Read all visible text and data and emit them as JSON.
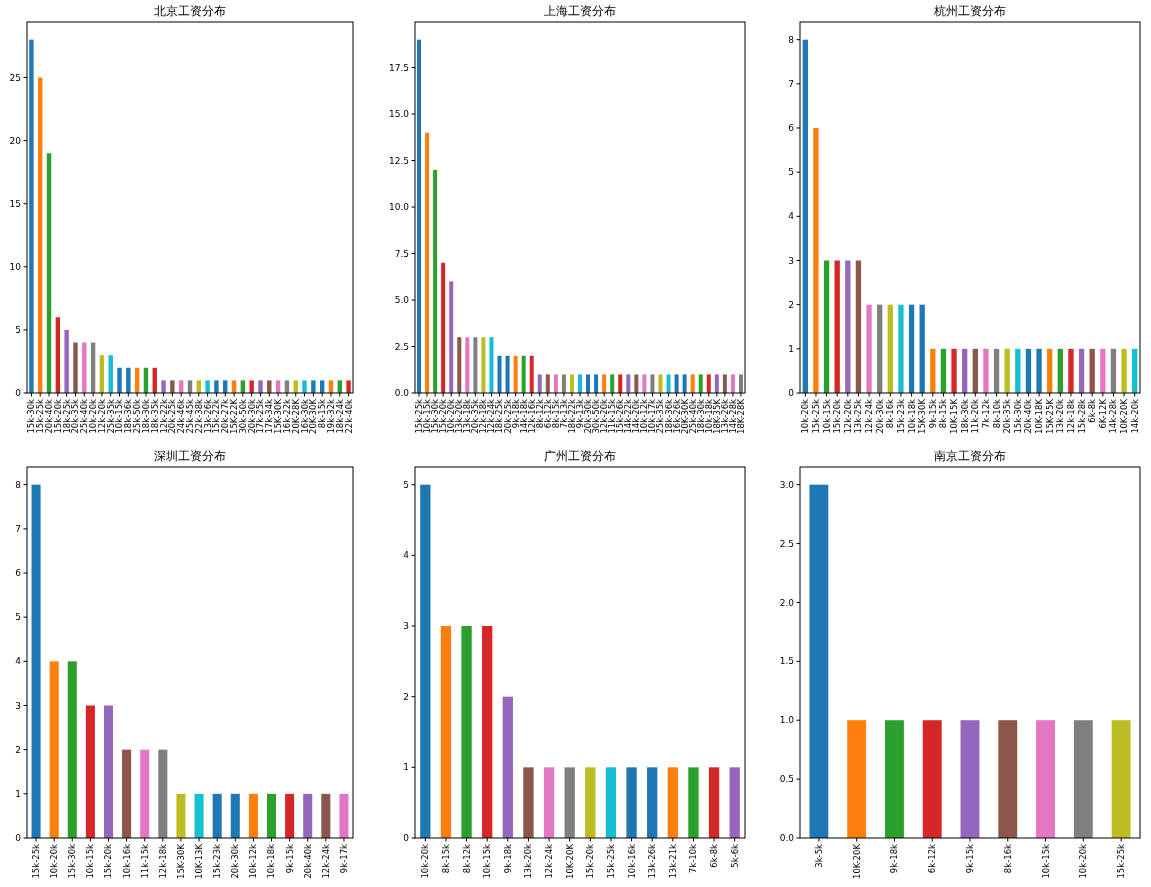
{
  "chart_data": [
    {
      "type": "bar",
      "title": "北京工资分布",
      "categories": [
        "15k-30k",
        "15k-25k",
        "20k-40k",
        "15k-20k",
        "18k-25k",
        "20k-35k",
        "25k-40k",
        "10k-20k",
        "12k-20k",
        "25k-35k",
        "10k-15k",
        "18k-36k",
        "25k-50k",
        "18k-30k",
        "18k-35k",
        "12k-22k",
        "20k-25k",
        "24k-46k",
        "25k-45k",
        "22k-38k",
        "13k-26k",
        "15k-22k",
        "20k-27k",
        "15K-22K",
        "30k-50k",
        "20k-30k",
        "17k-25k",
        "17k-34k",
        "15K-30K",
        "16k-22k",
        "20K-28K",
        "16k-30k",
        "20K-30K",
        "8k-15k",
        "19k-32k",
        "18k-24k",
        "22k-40k"
      ],
      "values": [
        28,
        25,
        19,
        6,
        5,
        4,
        4,
        4,
        3,
        3,
        2,
        2,
        2,
        2,
        2,
        1,
        1,
        1,
        1,
        1,
        1,
        1,
        1,
        1,
        1,
        1,
        1,
        1,
        1,
        1,
        1,
        1,
        1,
        1,
        1,
        1,
        1
      ],
      "colors": [
        "#1f77b4",
        "#ff7f0e",
        "#2ca02c",
        "#d62728",
        "#9467bd",
        "#8c564b",
        "#e377c2",
        "#7f7f7f",
        "#bcbd22",
        "#17becf",
        "#1f77b4",
        "#1f77b4",
        "#ff7f0e",
        "#2ca02c",
        "#d62728",
        "#9467bd",
        "#8c564b",
        "#e377c2",
        "#7f7f7f",
        "#bcbd22",
        "#17becf",
        "#1f77b4",
        "#1f77b4",
        "#ff7f0e",
        "#2ca02c",
        "#d62728",
        "#9467bd",
        "#8c564b",
        "#e377c2",
        "#7f7f7f",
        "#bcbd22",
        "#17becf",
        "#1f77b4",
        "#1f77b4",
        "#ff7f0e",
        "#2ca02c",
        "#d62728"
      ],
      "ylim": [
        0,
        29.4
      ],
      "yticks": [
        0,
        5,
        10,
        15,
        20,
        25
      ]
    },
    {
      "type": "bar",
      "title": "上海工资分布",
      "categories": [
        "15k-25k",
        "10k-15k",
        "15k-30k",
        "15k-20k",
        "10k-20k",
        "13k-20k",
        "13k-18k",
        "20k-35k",
        "12k-18k",
        "12k-24k",
        "18k-25k",
        "20k-25k",
        "9k-18k",
        "14k-18k",
        "12k-16k",
        "8k-12k",
        "6k-12k",
        "8k-15k",
        "7k-13k",
        "18k-22k",
        "9k-13k",
        "20k-30k",
        "30k-50k",
        "12k-20k",
        "11k-15k",
        "15k-26k",
        "14k-22k",
        "14k-20k",
        "10k-12k",
        "10k-17k",
        "25k-35k",
        "18k-36k",
        "16k-26k",
        "20K-30K",
        "25k-40k",
        "18k-30k",
        "10k-18k",
        "18K-35K",
        "13k-26k",
        "14k-28k",
        "18K-28K"
      ],
      "values": [
        19,
        14,
        12,
        7,
        6,
        3,
        3,
        3,
        3,
        3,
        2,
        2,
        2,
        2,
        2,
        1,
        1,
        1,
        1,
        1,
        1,
        1,
        1,
        1,
        1,
        1,
        1,
        1,
        1,
        1,
        1,
        1,
        1,
        1,
        1,
        1,
        1,
        1,
        1,
        1,
        1
      ],
      "colors": [
        "#1f77b4",
        "#ff7f0e",
        "#2ca02c",
        "#d62728",
        "#9467bd",
        "#8c564b",
        "#e377c2",
        "#7f7f7f",
        "#bcbd22",
        "#17becf",
        "#1f77b4",
        "#1f77b4",
        "#ff7f0e",
        "#2ca02c",
        "#d62728",
        "#9467bd",
        "#8c564b",
        "#e377c2",
        "#7f7f7f",
        "#bcbd22",
        "#17becf",
        "#1f77b4",
        "#1f77b4",
        "#ff7f0e",
        "#2ca02c",
        "#d62728",
        "#9467bd",
        "#8c564b",
        "#e377c2",
        "#7f7f7f",
        "#bcbd22",
        "#17becf",
        "#1f77b4",
        "#1f77b4",
        "#ff7f0e",
        "#2ca02c",
        "#d62728",
        "#9467bd",
        "#8c564b",
        "#e377c2",
        "#7f7f7f"
      ],
      "ylim": [
        0,
        19.95
      ],
      "yticks": [
        {
          "value": 0,
          "label": "0.0"
        },
        2.5,
        {
          "value": 5,
          "label": "5.0"
        },
        7.5,
        {
          "value": 10,
          "label": "10.0"
        },
        12.5,
        {
          "value": 15,
          "label": "15.0"
        },
        17.5
      ]
    },
    {
      "type": "bar",
      "title": "杭州工资分布",
      "categories": [
        "10k-20k",
        "15k-25k",
        "10k-15k",
        "15k-20k",
        "12k-20k",
        "13k-25k",
        "12k-24k",
        "20k-30k",
        "8k-16k",
        "15k-23k",
        "10k-18k",
        "15K-30K",
        "9k-15k",
        "8k-15k",
        "10K-15K",
        "18k-30k",
        "11k-20k",
        "7k-12k",
        "8k-10k",
        "20k-35k",
        "15k-30k",
        "20k-40k",
        "10K-18K",
        "15K-25K",
        "13k-20k",
        "12k-18k",
        "15k-28k",
        "6k-8k",
        "6K-12K",
        "14k-28k",
        "10K-20K",
        "14k-20k"
      ],
      "values": [
        8,
        6,
        3,
        3,
        3,
        3,
        2,
        2,
        2,
        2,
        2,
        2,
        1,
        1,
        1,
        1,
        1,
        1,
        1,
        1,
        1,
        1,
        1,
        1,
        1,
        1,
        1,
        1,
        1,
        1,
        1,
        1
      ],
      "colors": [
        "#1f77b4",
        "#ff7f0e",
        "#2ca02c",
        "#d62728",
        "#9467bd",
        "#8c564b",
        "#e377c2",
        "#7f7f7f",
        "#bcbd22",
        "#17becf",
        "#1f77b4",
        "#1f77b4",
        "#ff7f0e",
        "#2ca02c",
        "#d62728",
        "#9467bd",
        "#8c564b",
        "#e377c2",
        "#7f7f7f",
        "#bcbd22",
        "#17becf",
        "#1f77b4",
        "#1f77b4",
        "#ff7f0e",
        "#2ca02c",
        "#d62728",
        "#9467bd",
        "#8c564b",
        "#e377c2",
        "#7f7f7f",
        "#bcbd22",
        "#17becf"
      ],
      "ylim": [
        0,
        8.4
      ],
      "yticks": [
        0,
        1,
        2,
        3,
        4,
        5,
        6,
        7,
        8
      ]
    },
    {
      "type": "bar",
      "title": "深圳工资分布",
      "categories": [
        "15k-25k",
        "10k-20k",
        "15k-30k",
        "10k-15k",
        "15k-20k",
        "10k-16k",
        "11k-15k",
        "12k-18k",
        "15K-30K",
        "10K-13K",
        "15k-23k",
        "20k-30k",
        "10k-12k",
        "10k-18k",
        "9k-15k",
        "20k-40k",
        "12k-24k",
        "9k-17k"
      ],
      "values": [
        8,
        4,
        4,
        3,
        3,
        2,
        2,
        2,
        1,
        1,
        1,
        1,
        1,
        1,
        1,
        1,
        1,
        1
      ],
      "colors": [
        "#1f77b4",
        "#ff7f0e",
        "#2ca02c",
        "#d62728",
        "#9467bd",
        "#8c564b",
        "#e377c2",
        "#7f7f7f",
        "#bcbd22",
        "#17becf",
        "#1f77b4",
        "#1f77b4",
        "#ff7f0e",
        "#2ca02c",
        "#d62728",
        "#9467bd",
        "#8c564b",
        "#e377c2"
      ],
      "ylim": [
        0,
        8.4
      ],
      "yticks": [
        0,
        1,
        2,
        3,
        4,
        5,
        6,
        7,
        8
      ]
    },
    {
      "type": "bar",
      "title": "广州工资分布",
      "categories": [
        "10k-20k",
        "8k-15k",
        "8k-12k",
        "10k-15k",
        "9k-18k",
        "13k-20k",
        "12k-24k",
        "10K-20K",
        "15k-20k",
        "15k-25k",
        "10k-16k",
        "13k-26k",
        "13k-21k",
        "7k-10k",
        "6k-8k",
        "5k-6k"
      ],
      "values": [
        5,
        3,
        3,
        3,
        2,
        1,
        1,
        1,
        1,
        1,
        1,
        1,
        1,
        1,
        1,
        1
      ],
      "colors": [
        "#1f77b4",
        "#ff7f0e",
        "#2ca02c",
        "#d62728",
        "#9467bd",
        "#8c564b",
        "#e377c2",
        "#7f7f7f",
        "#bcbd22",
        "#17becf",
        "#1f77b4",
        "#1f77b4",
        "#ff7f0e",
        "#2ca02c",
        "#d62728",
        "#9467bd"
      ],
      "ylim": [
        0,
        5.25
      ],
      "yticks": [
        0,
        1,
        2,
        3,
        4,
        5
      ]
    },
    {
      "type": "bar",
      "title": "南京工资分布",
      "categories": [
        "3k-5k",
        "10K-20K",
        "9k-18k",
        "6k-12k",
        "9k-15k",
        "8k-16k",
        "10k-15k",
        "10k-20k",
        "15k-25k"
      ],
      "values": [
        3,
        1,
        1,
        1,
        1,
        1,
        1,
        1,
        1
      ],
      "colors": [
        "#1f77b4",
        "#ff7f0e",
        "#2ca02c",
        "#d62728",
        "#9467bd",
        "#8c564b",
        "#e377c2",
        "#7f7f7f",
        "#bcbd22"
      ],
      "ylim": [
        0,
        3.15
      ],
      "yticks": [
        {
          "value": 0,
          "label": "0.0"
        },
        0.5,
        {
          "value": 1,
          "label": "1.0"
        },
        1.5,
        {
          "value": 2,
          "label": "2.0"
        },
        2.5,
        {
          "value": 3,
          "label": "3.0"
        }
      ]
    }
  ]
}
